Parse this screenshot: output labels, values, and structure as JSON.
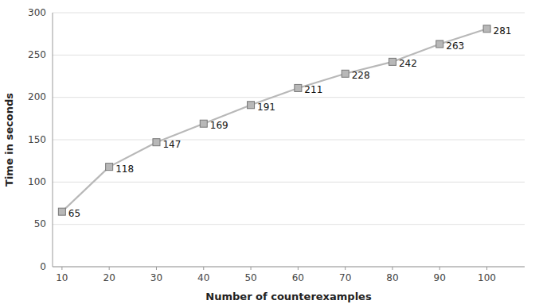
{
  "chart_data": {
    "type": "line",
    "xlabel": "Number of counterexamples",
    "ylabel": "Time in seconds",
    "x": [
      10,
      20,
      30,
      40,
      50,
      60,
      70,
      80,
      90,
      100
    ],
    "values": [
      65,
      118,
      147,
      169,
      191,
      211,
      228,
      242,
      263,
      281
    ],
    "xlim": [
      8,
      108
    ],
    "ylim": [
      0,
      300
    ],
    "xticks": [
      10,
      20,
      30,
      40,
      50,
      60,
      70,
      80,
      90,
      100
    ],
    "yticks": [
      0,
      50,
      100,
      150,
      200,
      250,
      300
    ],
    "color": "#b8b8b8",
    "marker": "square",
    "grid": true,
    "data_labels": true
  }
}
